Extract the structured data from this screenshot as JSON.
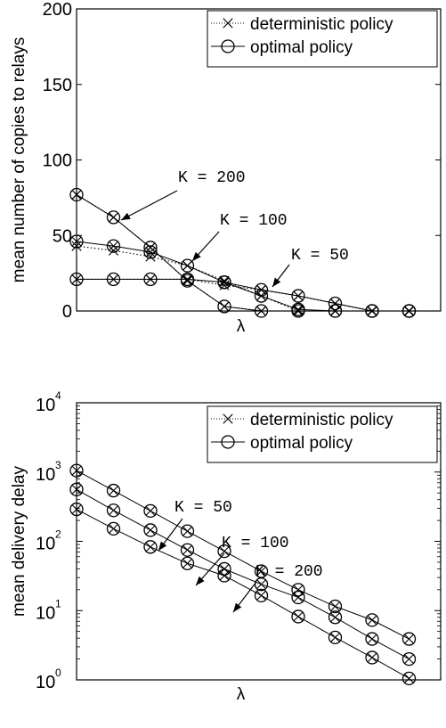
{
  "chart_data": [
    {
      "type": "line",
      "xlabel": "λ",
      "ylabel": "mean number of copies to relays",
      "ylim": [
        0,
        200
      ],
      "yticks": [
        "0",
        "50",
        "100",
        "150",
        "200"
      ],
      "x": [
        1,
        2,
        3,
        4,
        5,
        6,
        7,
        8,
        9,
        10
      ],
      "legend": {
        "position": "top-right",
        "entries": [
          "deterministic policy",
          "optimal policy"
        ]
      },
      "series": [
        {
          "group": "K = 200",
          "policy": "deterministic policy",
          "values": [
            77,
            62,
            42,
            20,
            3,
            0,
            0,
            0,
            0,
            0
          ]
        },
        {
          "group": "K = 200",
          "policy": "optimal policy",
          "values": [
            77,
            62,
            42,
            20,
            3,
            0,
            0,
            0,
            0,
            0
          ]
        },
        {
          "group": "K = 100",
          "policy": "deterministic policy",
          "values": [
            43,
            40,
            36,
            30,
            20,
            10,
            0,
            0,
            0,
            0
          ]
        },
        {
          "group": "K = 100",
          "policy": "optimal policy",
          "values": [
            46,
            43,
            39,
            30,
            19,
            10,
            1,
            0,
            0,
            0
          ]
        },
        {
          "group": "K = 50",
          "policy": "deterministic policy",
          "values": [
            21,
            21,
            21,
            21,
            17,
            14,
            10,
            5,
            0,
            0
          ]
        },
        {
          "group": "K = 50",
          "policy": "optimal policy",
          "values": [
            21,
            21,
            21,
            21,
            19,
            14,
            10,
            5,
            0,
            0
          ]
        }
      ],
      "annotations": [
        {
          "text": "K = 200",
          "target": [
            2,
            62
          ]
        },
        {
          "text": "K = 100",
          "target": [
            4,
            30
          ]
        },
        {
          "text": "K = 50",
          "target": [
            6,
            14
          ]
        }
      ]
    },
    {
      "type": "line",
      "xlabel": "λ",
      "ylabel": "mean delivery delay",
      "yscale": "log",
      "ylim": [
        1,
        10000
      ],
      "yticks": [
        {
          "base": "10",
          "exp": "0"
        },
        {
          "base": "10",
          "exp": "1"
        },
        {
          "base": "10",
          "exp": "2"
        },
        {
          "base": "10",
          "exp": "3"
        },
        {
          "base": "10",
          "exp": "4"
        }
      ],
      "x": [
        1,
        2,
        3,
        4,
        5,
        6,
        7,
        8,
        9,
        10
      ],
      "legend": {
        "position": "top-right",
        "entries": [
          "deterministic policy",
          "optimal policy"
        ]
      },
      "series": [
        {
          "group": "K = 50",
          "policy": "optimal policy",
          "values": [
            1050,
            540,
            275,
            140,
            72,
            37,
            20,
            11.5,
            7.3,
            3.9
          ]
        },
        {
          "group": "K = 100",
          "policy": "optimal policy",
          "values": [
            560,
            280,
            145,
            75,
            40,
            24,
            15.5,
            8,
            3.9,
            2
          ]
        },
        {
          "group": "K = 200",
          "policy": "optimal policy",
          "values": [
            290,
            152,
            83,
            48,
            32,
            16.5,
            8.2,
            4.1,
            2.1,
            1.05
          ]
        }
      ],
      "annotations": [
        {
          "text": "K = 50",
          "target": [
            4,
            140
          ]
        },
        {
          "text": "K = 100",
          "target": [
            4,
            75
          ]
        },
        {
          "text": "K = 200",
          "target": [
            5,
            32
          ]
        }
      ]
    }
  ]
}
